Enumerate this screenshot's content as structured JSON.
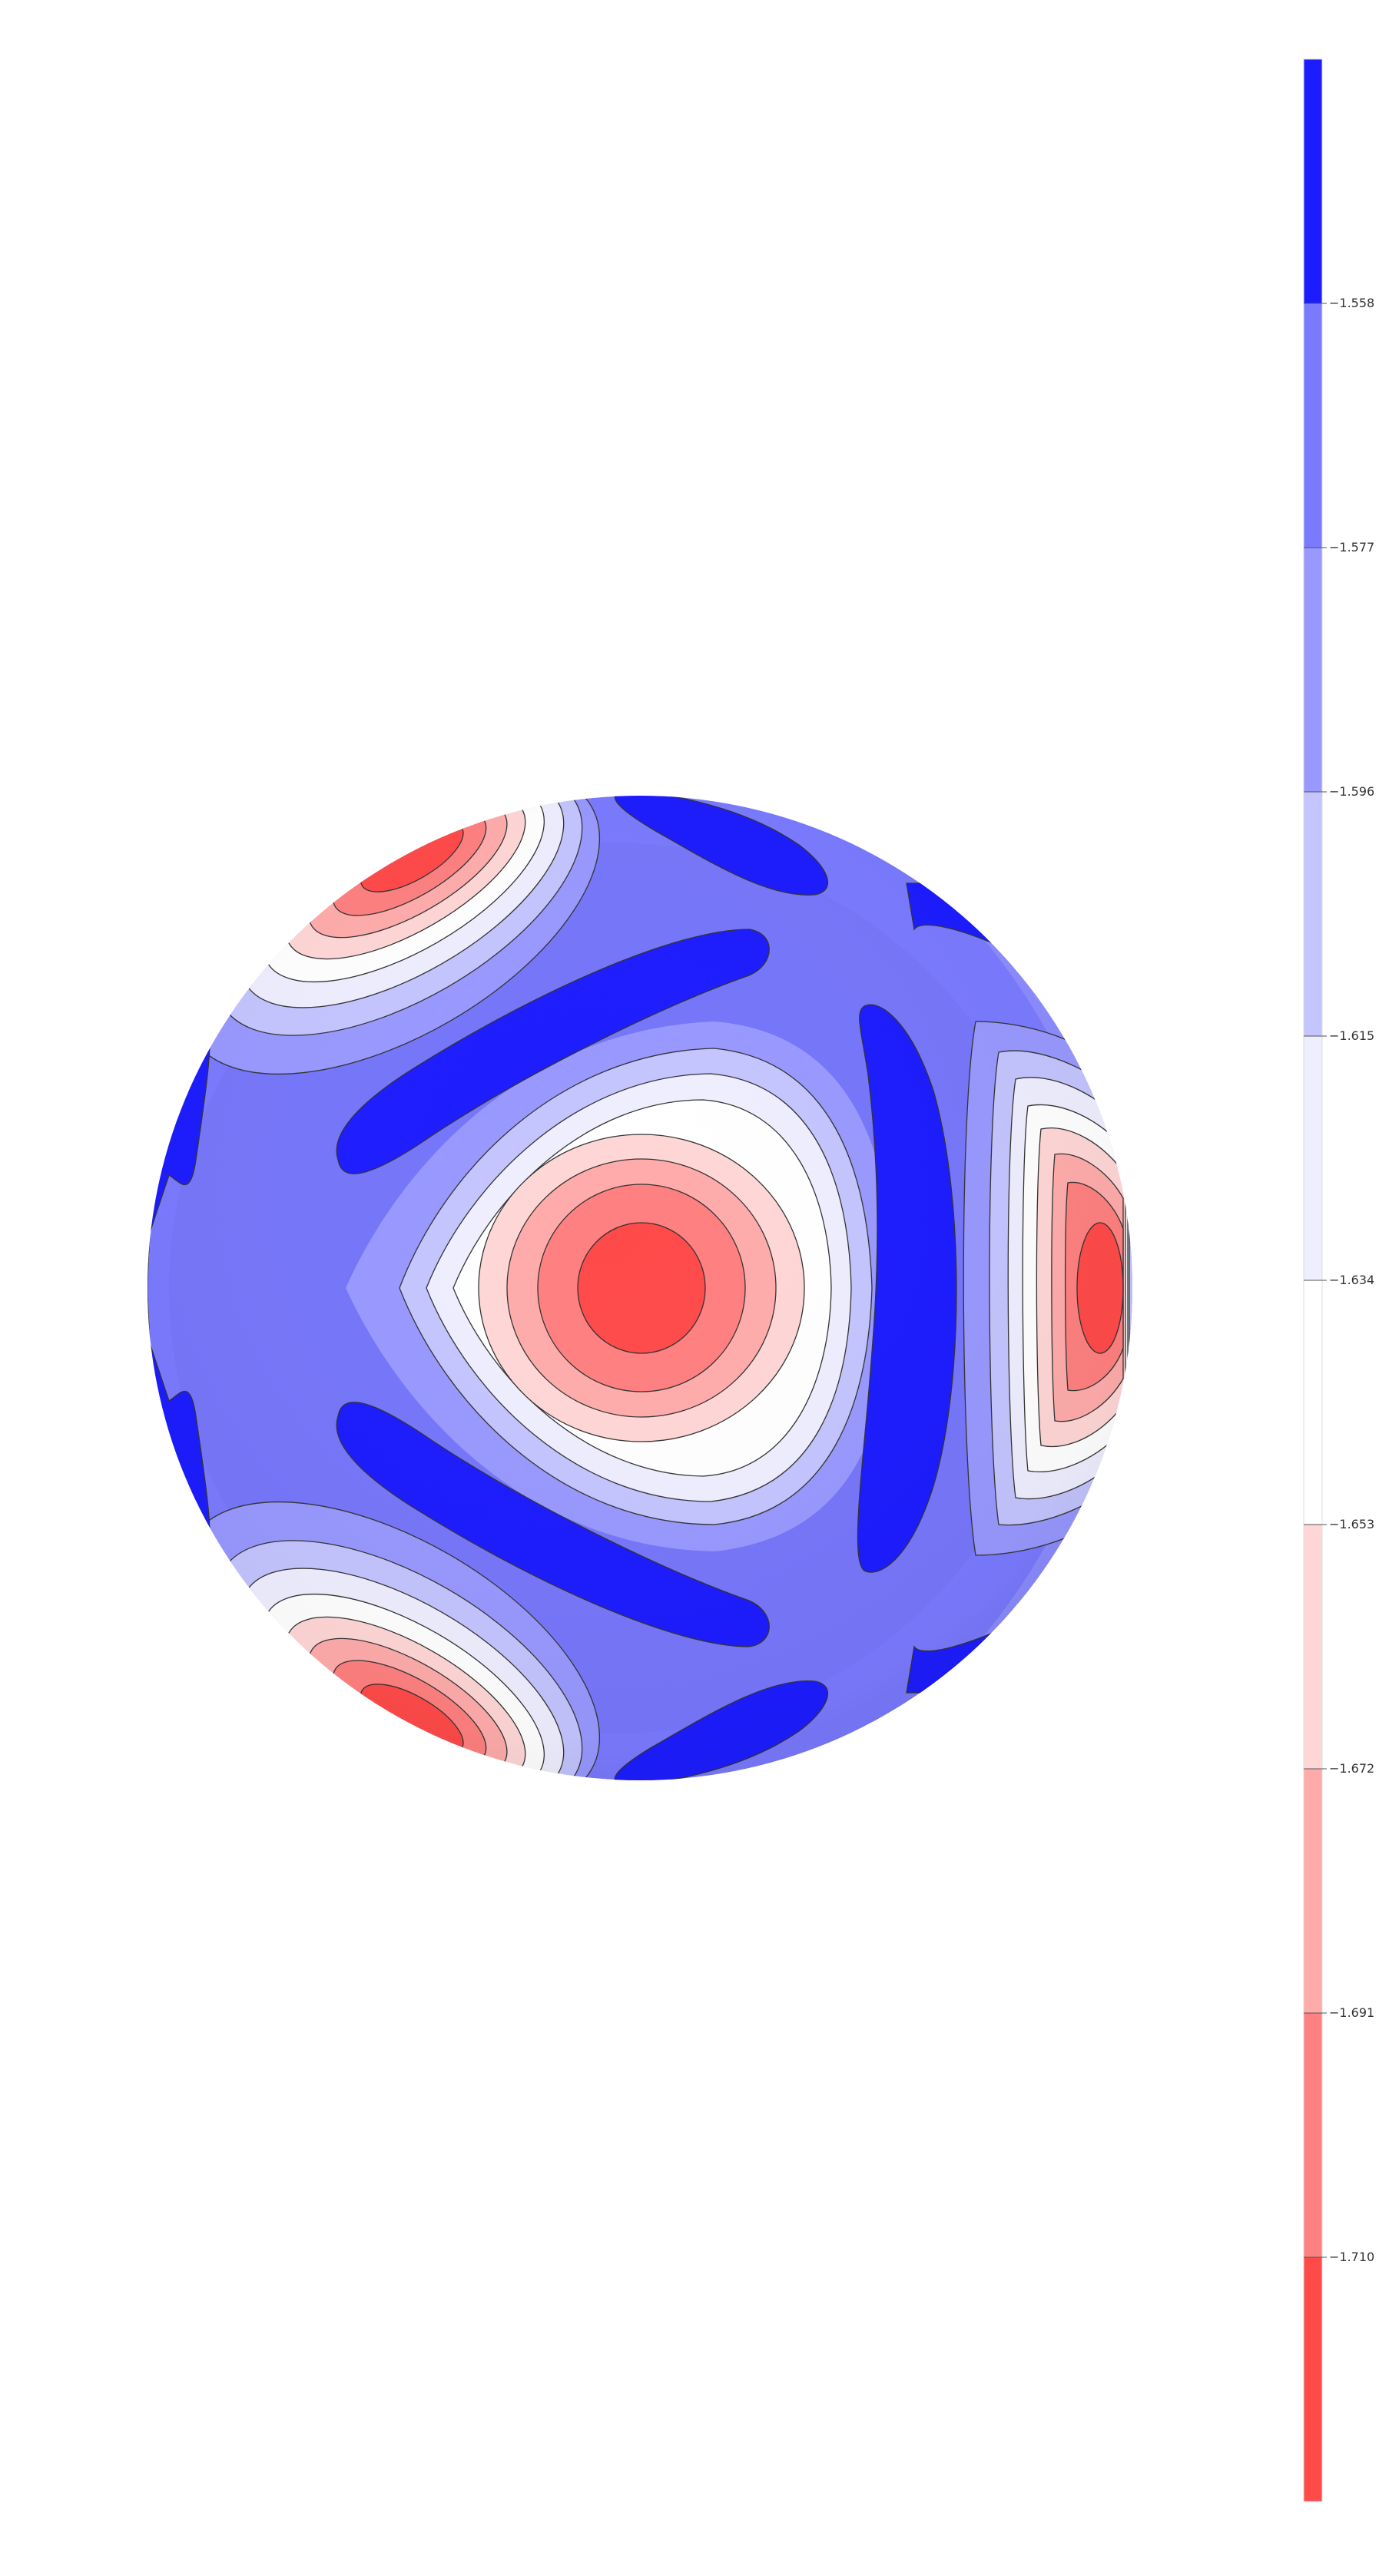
{
  "chart_data": {
    "type": "heatmap",
    "title": "",
    "subtitle": "",
    "xlabel": "",
    "ylabel": "",
    "description_type": "filled contour on sphere",
    "colormap": "bwr",
    "colorbar": {
      "orientation": "vertical",
      "placement": "right",
      "min": -1.729,
      "max": -1.539,
      "levels": [
        -1.729,
        -1.71,
        -1.691,
        -1.672,
        -1.653,
        -1.634,
        -1.615,
        -1.596,
        -1.577,
        -1.558,
        -1.539
      ],
      "tick_values": [
        -1.558,
        -1.577,
        -1.596,
        -1.615,
        -1.634,
        -1.653,
        -1.672,
        -1.691,
        -1.71
      ],
      "tick_labels": [
        "−1.558",
        "−1.577",
        "−1.596",
        "−1.615",
        "−1.634",
        "−1.653",
        "−1.672",
        "−1.691",
        "−1.710"
      ],
      "band_colors": [
        "#ff4a4a",
        "#ff8080",
        "#ffabab",
        "#ffd6d6",
        "#ffffff",
        "#eeeeff",
        "#c4c4ff",
        "#9898ff",
        "#7a7aff",
        "#1c1cff"
      ]
    },
    "grid": false,
    "legend": "none"
  }
}
